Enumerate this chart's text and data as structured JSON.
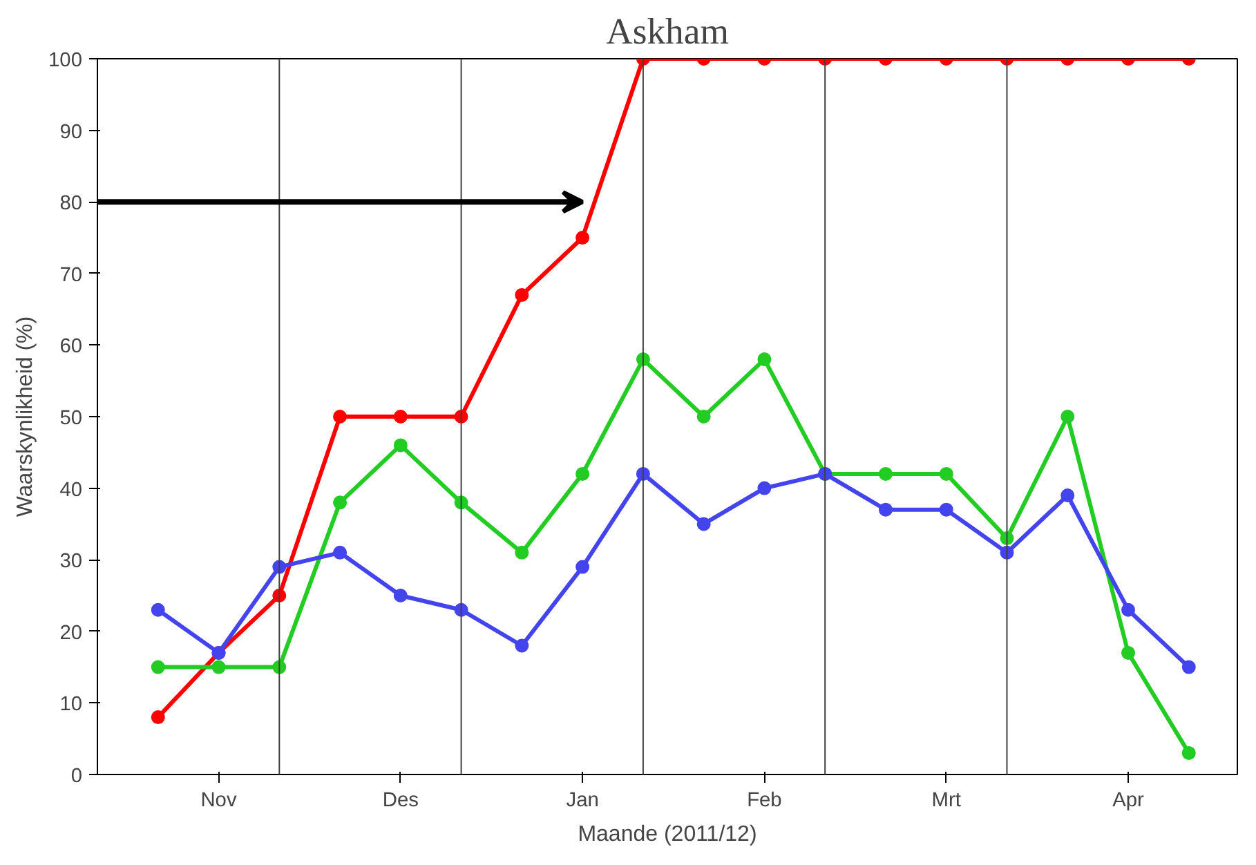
{
  "chart_data": {
    "type": "line",
    "title": "Askham",
    "xlabel": "Maande (2011/12)",
    "ylabel": "Waarskynlikheid (%)",
    "categories": [
      null,
      "Nov",
      null,
      null,
      "Des",
      null,
      null,
      "Jan",
      null,
      null,
      "Feb",
      null,
      null,
      "Mrt",
      null,
      null,
      "Apr",
      null
    ],
    "series": [
      {
        "color": "#ff0000",
        "values": [
          8,
          17,
          25,
          50,
          50,
          50,
          67,
          75,
          100,
          100,
          100,
          100,
          100,
          100,
          100,
          100,
          100,
          100
        ]
      },
      {
        "color": "#22cc22",
        "values": [
          15,
          15,
          15,
          38,
          46,
          38,
          31,
          42,
          58,
          50,
          58,
          42,
          42,
          42,
          33,
          50,
          17,
          3
        ]
      },
      {
        "color": "#4444ee",
        "values": [
          23,
          17,
          29,
          31,
          25,
          23,
          18,
          29,
          42,
          35,
          40,
          42,
          37,
          37,
          31,
          39,
          23,
          15
        ]
      }
    ],
    "ylim": [
      0,
      100
    ],
    "yticks": [
      0,
      10,
      20,
      30,
      40,
      50,
      60,
      70,
      80,
      90,
      100
    ],
    "marker": "circle",
    "line_style": "solid",
    "grid": "x"
  }
}
